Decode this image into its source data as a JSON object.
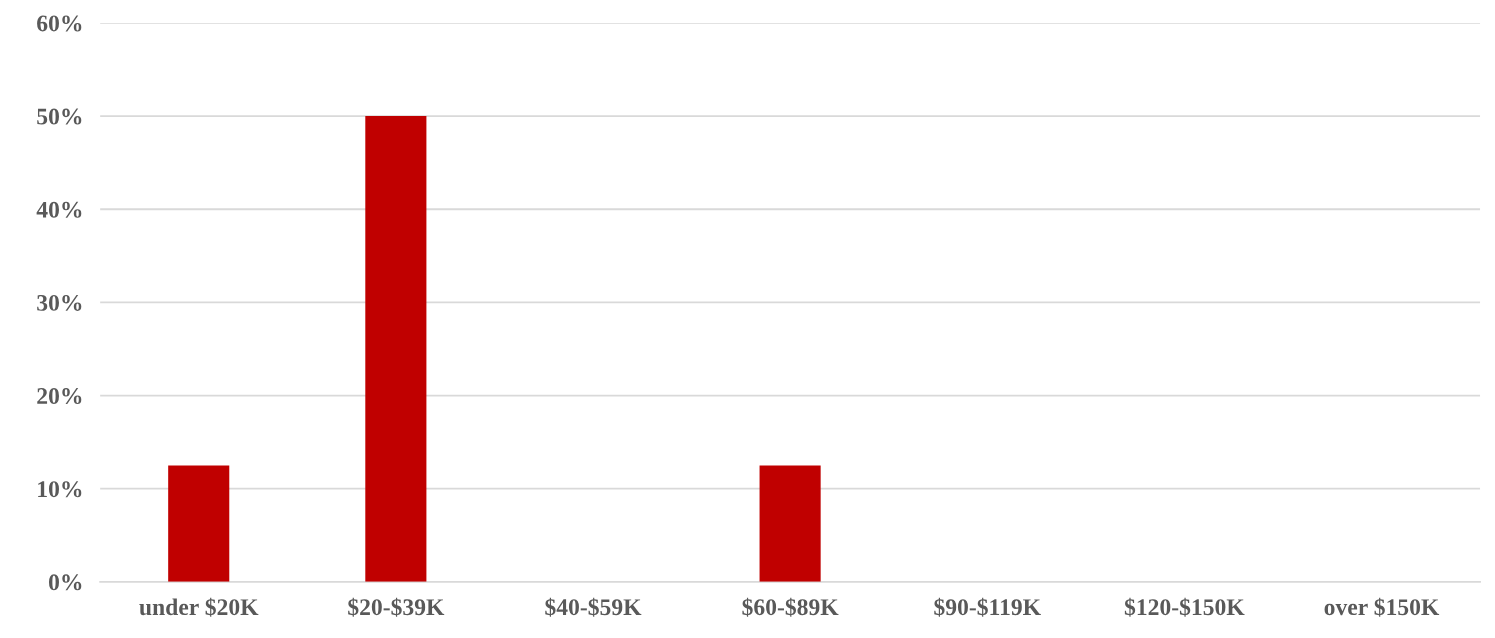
{
  "chart_data": {
    "type": "bar",
    "categories": [
      "under $20K",
      "$20-$39K",
      "$40-$59K",
      "$60-$89K",
      "$90-$119K",
      "$120-$150K",
      "over $150K"
    ],
    "values": [
      12.5,
      50,
      0,
      12.5,
      0,
      0,
      0
    ],
    "color": "#c00000",
    "ylim": [
      0,
      60
    ],
    "yticks": [
      {
        "value": 0,
        "label": "0%"
      },
      {
        "value": 10,
        "label": "10%"
      },
      {
        "value": 20,
        "label": "20%"
      },
      {
        "value": 30,
        "label": "30%"
      },
      {
        "value": 40,
        "label": "40%"
      },
      {
        "value": 50,
        "label": "50%"
      },
      {
        "value": 60,
        "label": "60%"
      }
    ],
    "grid": "y",
    "legend": false
  }
}
